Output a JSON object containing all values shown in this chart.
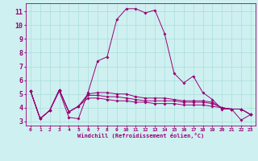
{
  "xlabel": "Windchill (Refroidissement éolien,°C)",
  "background_color": "#cff0f0",
  "grid_color": "#aadddd",
  "line_color": "#990077",
  "xlim": [
    -0.5,
    23.5
  ],
  "ylim": [
    2.7,
    11.6
  ],
  "yticks": [
    3,
    4,
    5,
    6,
    7,
    8,
    9,
    10,
    11
  ],
  "xticks": [
    0,
    1,
    2,
    3,
    4,
    5,
    6,
    7,
    8,
    9,
    10,
    11,
    12,
    13,
    14,
    15,
    16,
    17,
    18,
    19,
    20,
    21,
    22,
    23
  ],
  "series": [
    [
      5.2,
      3.2,
      3.8,
      5.2,
      3.3,
      3.2,
      5.1,
      7.4,
      7.7,
      10.4,
      11.2,
      11.2,
      10.9,
      11.1,
      9.4,
      6.5,
      5.8,
      6.3,
      5.1,
      4.6,
      3.9,
      3.9,
      3.1,
      3.5
    ],
    [
      5.2,
      3.2,
      3.8,
      5.3,
      3.7,
      4.1,
      5.0,
      5.1,
      5.1,
      5.0,
      5.0,
      4.8,
      4.7,
      4.7,
      4.7,
      4.6,
      4.5,
      4.5,
      4.5,
      4.4,
      4.0,
      3.9,
      3.9,
      3.5
    ],
    [
      5.2,
      3.2,
      3.8,
      5.3,
      3.7,
      4.1,
      4.9,
      4.9,
      4.8,
      4.8,
      4.7,
      4.6,
      4.5,
      4.5,
      4.5,
      4.5,
      4.4,
      4.4,
      4.4,
      4.3,
      4.0,
      3.9,
      3.9,
      3.5
    ],
    [
      5.2,
      3.2,
      3.8,
      5.3,
      3.7,
      4.1,
      4.7,
      4.7,
      4.6,
      4.5,
      4.5,
      4.4,
      4.4,
      4.3,
      4.3,
      4.3,
      4.2,
      4.2,
      4.2,
      4.1,
      4.0,
      3.9,
      3.9,
      3.5
    ]
  ]
}
